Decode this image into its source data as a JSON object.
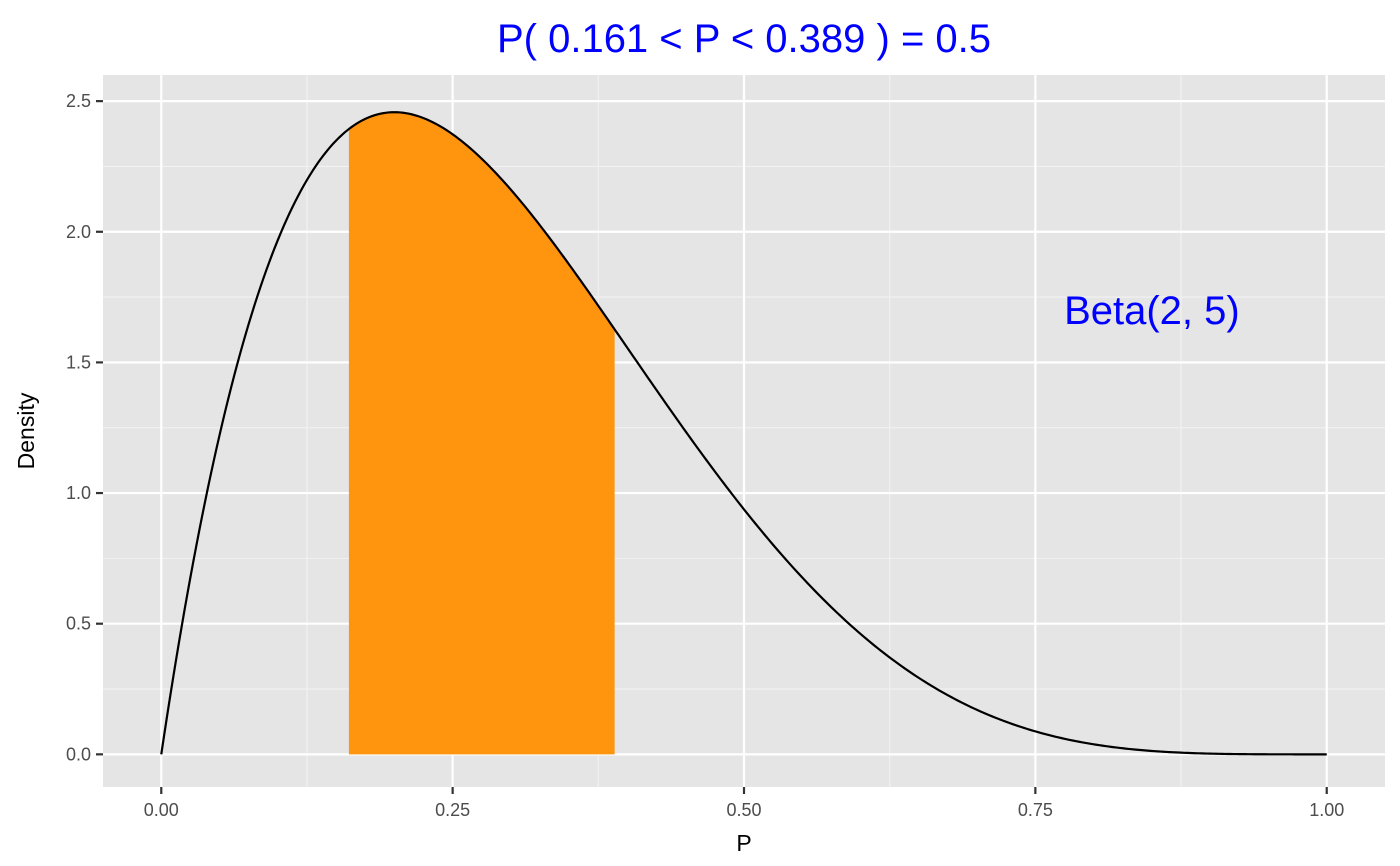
{
  "colors": {
    "panel_background": "#e5e5e5",
    "grid_major": "#ffffff",
    "grid_minor": "#f2f2f2",
    "curve": "#000000",
    "shaded_area": "#ff950e",
    "title_text": "#0000ff",
    "annotation_text": "#0000ff",
    "tick_text": "#4d4d4d"
  },
  "chart_data": {
    "type": "area",
    "title": "P( 0.161 < P <  0.389 ) = 0.5",
    "xlabel": "P",
    "ylabel": "Density",
    "xlim": [
      -0.05,
      1.05
    ],
    "ylim": [
      -0.125,
      2.6
    ],
    "x_ticks": [
      0,
      0.25,
      0.5,
      0.75,
      1
    ],
    "x_tick_labels": [
      "0.00",
      "0.25",
      "0.50",
      "0.75",
      "1.00"
    ],
    "y_ticks": [
      0,
      0.5,
      1,
      1.5,
      2,
      2.5
    ],
    "y_tick_labels": [
      "0.0",
      "0.5",
      "1.0",
      "1.5",
      "2.0",
      "2.5"
    ],
    "grid": true,
    "distribution": {
      "family": "Beta",
      "alpha": 2,
      "beta": 5
    },
    "curve": {
      "x": [
        0,
        0.05,
        0.1,
        0.15,
        0.2,
        0.25,
        0.3,
        0.35,
        0.4,
        0.45,
        0.5,
        0.55,
        0.6,
        0.65,
        0.7,
        0.75,
        0.8,
        0.85,
        0.9,
        0.95,
        1.0
      ],
      "y": [
        0,
        1.222,
        1.968,
        2.349,
        2.458,
        2.373,
        2.161,
        1.874,
        1.555,
        1.235,
        0.938,
        0.676,
        0.461,
        0.289,
        0.17,
        0.088,
        0.038,
        0.012,
        0.003,
        0.0,
        0
      ]
    },
    "shaded_interval": {
      "from": 0.161,
      "to": 0.389,
      "x": [
        0.161,
        0.18,
        0.2,
        0.22,
        0.24,
        0.26,
        0.28,
        0.3,
        0.32,
        0.34,
        0.36,
        0.38,
        0.389
      ],
      "y": [
        2.391,
        2.441,
        2.458,
        2.446,
        2.409,
        2.352,
        2.279,
        2.161,
        2.083,
        1.948,
        1.802,
        1.643,
        1.622
      ],
      "probability": 0.5
    },
    "annotations": [
      {
        "text": "Beta(2, 5)",
        "x": 0.85,
        "y": 1.7
      }
    ]
  }
}
